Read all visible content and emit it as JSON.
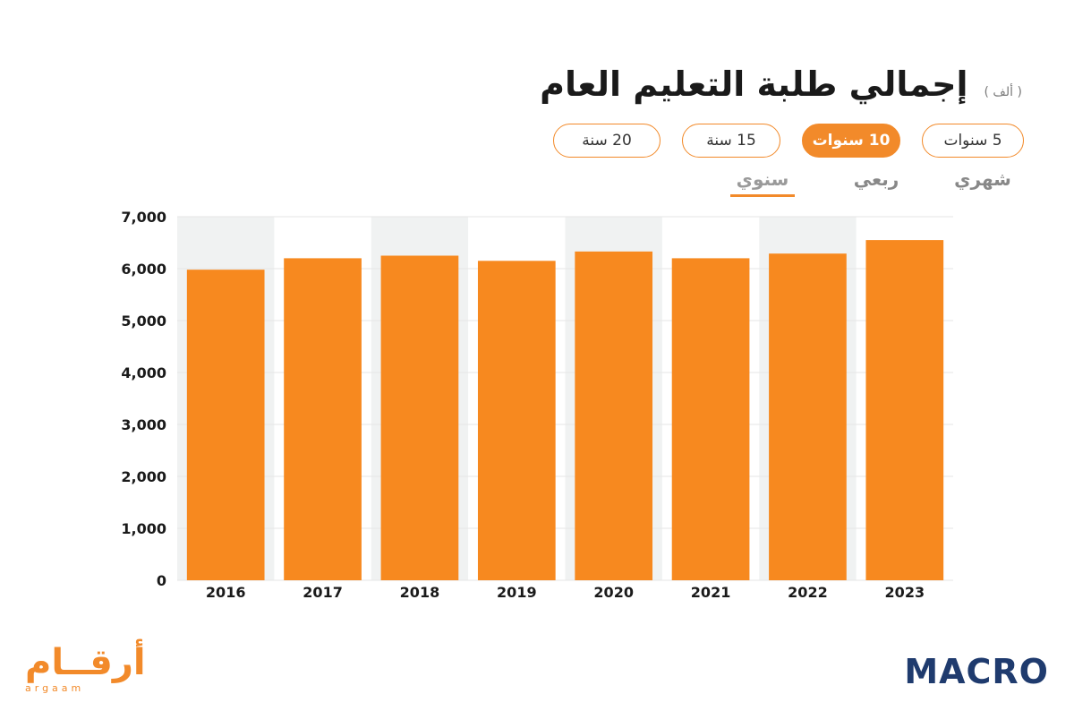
{
  "header": {
    "title": "إجمالي طلبة التعليم العام",
    "unit": "( ألف )"
  },
  "range_buttons": [
    {
      "label": "5 سنوات",
      "active": false
    },
    {
      "label": "10 سنوات",
      "active": true
    },
    {
      "label": "15 سنة",
      "active": false
    },
    {
      "label": "20 سنة",
      "active": false
    }
  ],
  "frequency_tabs": [
    {
      "label": "شهري",
      "active": false
    },
    {
      "label": "ربعي",
      "active": false
    },
    {
      "label": "سنوي",
      "active": true
    }
  ],
  "colors": {
    "bar": "#f7891f",
    "band": "#f0f2f2",
    "accent": "#f28a2a",
    "brand_navy": "#1f3b6e"
  },
  "chart_data": {
    "type": "bar",
    "categories": [
      "2016",
      "2017",
      "2018",
      "2019",
      "2020",
      "2021",
      "2022",
      "2023"
    ],
    "values": [
      5980,
      6200,
      6250,
      6150,
      6330,
      6200,
      6290,
      6550
    ],
    "yticks": [
      "0",
      "1,000",
      "2,000",
      "3,000",
      "4,000",
      "5,000",
      "6,000",
      "7,000"
    ],
    "ylim": [
      0,
      7000
    ],
    "alternating_bands": true,
    "grid": true
  },
  "logos": {
    "left_ar": "أرقــام",
    "left_en": "argaam",
    "right": "MACRO"
  }
}
